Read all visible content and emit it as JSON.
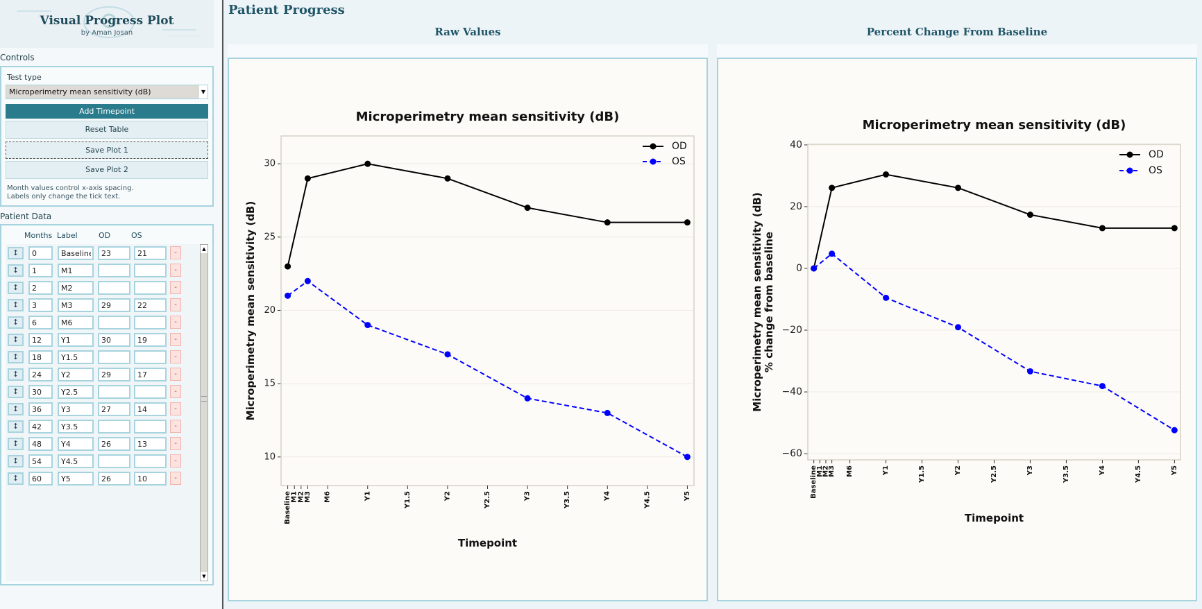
{
  "sidebar": {
    "app_title": "Visual Progress Plot",
    "app_subtitle": "by Aman Josan",
    "controls_label": "Controls",
    "test_type_label": "Test type",
    "test_type_value": "Microperimetry mean sensitivity (dB)",
    "buttons": {
      "add_timepoint": "Add Timepoint",
      "reset_table": "Reset Table",
      "save_plot_1": "Save Plot 1",
      "save_plot_2": "Save Plot 2"
    },
    "note_line_1": "Month values control x-axis spacing.",
    "note_line_2": "Labels only change the tick text.",
    "patient_data_label": "Patient Data",
    "columns": [
      "Months",
      "Label",
      "OD",
      "OS"
    ],
    "move_button_glyph": "↕",
    "remove_button_glyph": "-",
    "rows": [
      {
        "months": "0",
        "label": "Baseline",
        "od": "23",
        "os": "21"
      },
      {
        "months": "1",
        "label": "M1",
        "od": "",
        "os": ""
      },
      {
        "months": "2",
        "label": "M2",
        "od": "",
        "os": ""
      },
      {
        "months": "3",
        "label": "M3",
        "od": "29",
        "os": "22"
      },
      {
        "months": "6",
        "label": "M6",
        "od": "",
        "os": ""
      },
      {
        "months": "12",
        "label": "Y1",
        "od": "30",
        "os": "19"
      },
      {
        "months": "18",
        "label": "Y1.5",
        "od": "",
        "os": ""
      },
      {
        "months": "24",
        "label": "Y2",
        "od": "29",
        "os": "17"
      },
      {
        "months": "30",
        "label": "Y2.5",
        "od": "",
        "os": ""
      },
      {
        "months": "36",
        "label": "Y3",
        "od": "27",
        "os": "14"
      },
      {
        "months": "42",
        "label": "Y3.5",
        "od": "",
        "os": ""
      },
      {
        "months": "48",
        "label": "Y4",
        "od": "26",
        "os": "13"
      },
      {
        "months": "54",
        "label": "Y4.5",
        "od": "",
        "os": ""
      },
      {
        "months": "60",
        "label": "Y5",
        "od": "26",
        "os": "10"
      }
    ]
  },
  "main": {
    "title": "Patient Progress",
    "panels": [
      {
        "title": "Raw Values"
      },
      {
        "title": "Percent Change From Baseline"
      }
    ]
  },
  "colors": {
    "accent": "#2a7b8c",
    "od": "#000000",
    "os": "#0000ff"
  },
  "chart_data": [
    {
      "type": "line",
      "title": "Microperimetry mean sensitivity (dB)",
      "xlabel": "Timepoint",
      "ylabel": [
        "Microperimetry mean sensitivity (dB)"
      ],
      "xlim": [
        -1,
        61
      ],
      "ylim": [
        8.05,
        31.9
      ],
      "xticks": [
        0,
        1,
        2,
        3,
        6,
        12,
        18,
        24,
        30,
        36,
        42,
        48,
        54,
        60
      ],
      "xtick_labels": [
        "Baseline",
        "M1",
        "M2",
        "M3",
        "M6",
        "Y1",
        "Y1.5",
        "Y2",
        "Y2.5",
        "Y3",
        "Y3.5",
        "Y4",
        "Y4.5",
        "Y5"
      ],
      "yticks": [
        10,
        15,
        20,
        25,
        30
      ],
      "ytick_labels": [
        "10",
        "15",
        "20",
        "25",
        "30"
      ],
      "grid": "horizontal",
      "legend": "top-right",
      "series": [
        {
          "name": "OD",
          "style": "solid",
          "color": "#000000",
          "x": [
            0,
            3,
            12,
            24,
            36,
            48,
            60
          ],
          "y": [
            23,
            29,
            30,
            29,
            27,
            26,
            26
          ]
        },
        {
          "name": "OS",
          "style": "dashed",
          "color": "#0000ff",
          "x": [
            0,
            3,
            12,
            24,
            36,
            48,
            60
          ],
          "y": [
            21,
            22,
            19,
            17,
            14,
            13,
            10
          ]
        }
      ]
    },
    {
      "type": "line",
      "title": "Microperimetry mean sensitivity (dB)",
      "xlabel": "Timepoint",
      "ylabel": [
        "Microperimetry mean sensitivity (dB)",
        "% change from baseline"
      ],
      "xlim": [
        -1,
        61
      ],
      "ylim": [
        -62,
        40.2
      ],
      "xticks": [
        0,
        1,
        2,
        3,
        6,
        12,
        18,
        24,
        30,
        36,
        42,
        48,
        54,
        60
      ],
      "xtick_labels": [
        "Baseline",
        "M1",
        "M2",
        "M3",
        "M6",
        "Y1",
        "Y1.5",
        "Y2",
        "Y2.5",
        "Y3",
        "Y3.5",
        "Y4",
        "Y4.5",
        "Y5"
      ],
      "yticks": [
        -60,
        -40,
        -20,
        0,
        20,
        40
      ],
      "ytick_labels": [
        "−60",
        "−40",
        "−20",
        "0",
        "20",
        "40"
      ],
      "grid": "horizontal",
      "legend": "top-right",
      "series": [
        {
          "name": "OD",
          "style": "solid",
          "color": "#000000",
          "x": [
            0,
            3,
            12,
            24,
            36,
            48,
            60
          ],
          "y": [
            0,
            26.09,
            30.43,
            26.09,
            17.39,
            13.04,
            13.04
          ]
        },
        {
          "name": "OS",
          "style": "dashed",
          "color": "#0000ff",
          "x": [
            0,
            3,
            12,
            24,
            36,
            48,
            60
          ],
          "y": [
            0,
            4.76,
            -9.52,
            -19.05,
            -33.33,
            -38.1,
            -52.38
          ]
        }
      ]
    }
  ]
}
